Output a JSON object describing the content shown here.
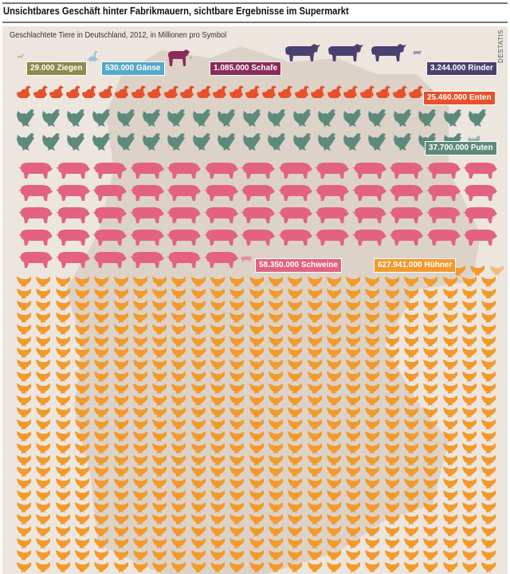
{
  "title": "Unsichtbares Geschäft hinter Fabrikmauern, sichtbare Ergebnisse im Supermarkt",
  "chart_data": {
    "type": "pictogram",
    "title": "Geschlachtete Tiere in Deutschland, 2012, in Millionen pro Symbol",
    "unit": "1 Million pro Symbol",
    "source": "DESTATIS",
    "series": [
      {
        "name": "Ziegen",
        "label": "29.000 Ziegen",
        "value": 29000,
        "symbols": 0.029,
        "color": "#8c8a4c"
      },
      {
        "name": "Gänse",
        "label": "530.000 Gänse",
        "value": 530000,
        "symbols": 0.53,
        "color": "#58a7cc"
      },
      {
        "name": "Schafe",
        "label": "1.085.000 Schafe",
        "value": 1085000,
        "symbols": 1.085,
        "color": "#8b2c58"
      },
      {
        "name": "Rinder",
        "label": "3.244.000 Rinder",
        "value": 3244000,
        "symbols": 3.244,
        "color": "#4b4170"
      },
      {
        "name": "Enten",
        "label": "25.460.000 Enten",
        "value": 25460000,
        "symbols": 25.46,
        "color": "#e8512b"
      },
      {
        "name": "Puten",
        "label": "37.700.000 Puten",
        "value": 37700000,
        "symbols": 37.7,
        "color": "#5e8a7b"
      },
      {
        "name": "Schweine",
        "label": "58.350.000 Schweine",
        "value": 58350000,
        "symbols": 58.35,
        "color": "#e2627f"
      },
      {
        "name": "Hühner",
        "label": "627.941.000 Hühner",
        "value": 627941000,
        "symbols": 627.941,
        "color": "#f39a2c"
      }
    ]
  }
}
